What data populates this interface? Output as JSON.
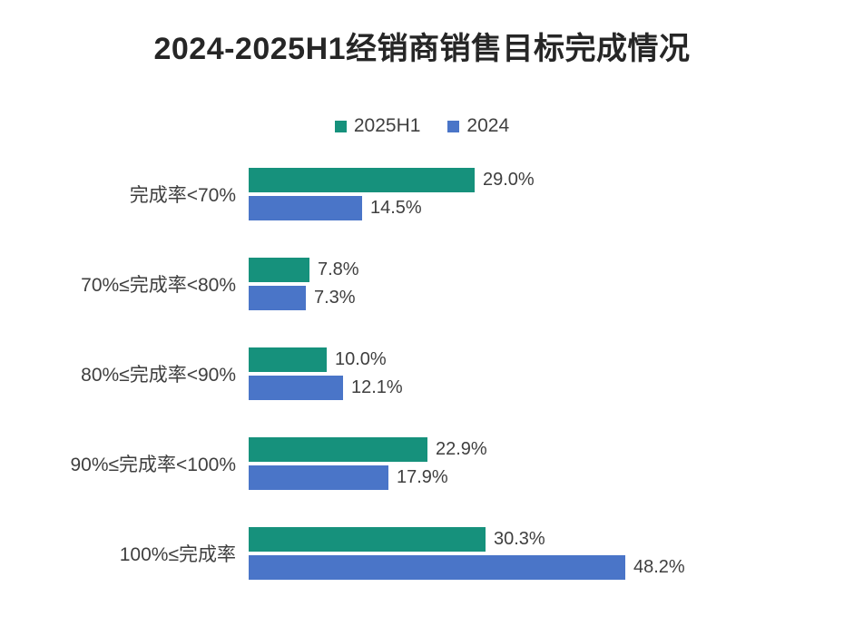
{
  "title": "2024-2025H1经销商销售目标完成情况",
  "colors": {
    "series_2025H1": "#16917c",
    "series_2024": "#4a75c8",
    "title_text": "#262626",
    "label_text": "#3f3f3f"
  },
  "legend": {
    "items": [
      {
        "label": "2025H1",
        "color": "#16917c"
      },
      {
        "label": "2024",
        "color": "#4a75c8"
      }
    ]
  },
  "chart_data": {
    "type": "bar",
    "orientation": "horizontal",
    "title": "2024-2025H1经销商销售目标完成情况",
    "categories": [
      "完成率<70%",
      "70%≤完成率<80%",
      "80%≤完成率<90%",
      "90%≤完成率<100%",
      "100%≤完成率"
    ],
    "series": [
      {
        "name": "2025H1",
        "color": "#16917c",
        "values": [
          29.0,
          7.8,
          10.0,
          22.9,
          30.3
        ],
        "value_labels": [
          "29.0%",
          "7.8%",
          "10.0%",
          "22.9%",
          "30.3%"
        ]
      },
      {
        "name": "2024",
        "color": "#4a75c8",
        "values": [
          14.5,
          7.3,
          12.1,
          17.9,
          48.2
        ],
        "value_labels": [
          "14.5%",
          "7.3%",
          "12.1%",
          "17.9%",
          "48.2%"
        ]
      }
    ],
    "xlabel": "",
    "ylabel": "",
    "xlim": [
      0,
      50
    ],
    "grid": false,
    "legend_position": "top",
    "data_labels": true
  }
}
